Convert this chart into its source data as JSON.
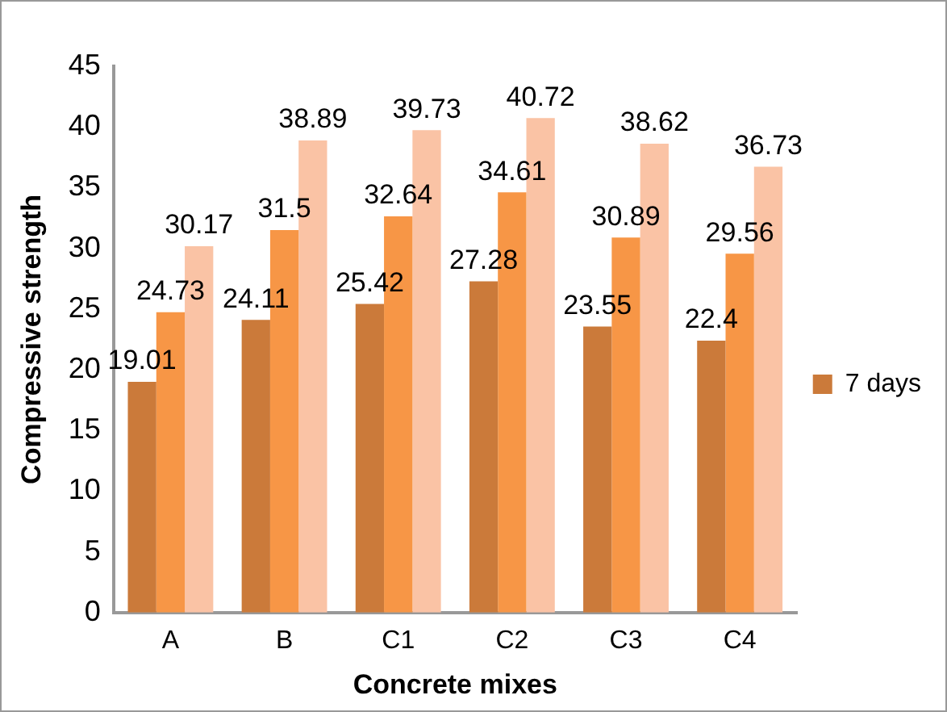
{
  "chart_data": {
    "type": "bar",
    "xlabel": "Concrete mixes",
    "ylabel": "Compressive strength",
    "categories": [
      "A",
      "B",
      "C1",
      "C2",
      "C3",
      "C4"
    ],
    "series": [
      {
        "name": "7 days",
        "color": "#cb7a3a",
        "values": [
          19.01,
          24.11,
          25.42,
          27.28,
          23.55,
          22.4
        ]
      },
      {
        "color": "#f79646",
        "values": [
          24.73,
          31.5,
          32.64,
          34.61,
          30.89,
          29.56
        ]
      },
      {
        "color": "#fac3a5",
        "values": [
          30.17,
          38.89,
          39.73,
          40.72,
          38.62,
          36.73
        ]
      }
    ],
    "ylim": [
      0,
      45
    ],
    "yticks": [
      0,
      5,
      10,
      15,
      20,
      25,
      30,
      35,
      40,
      45
    ],
    "grid": false,
    "legend": "right",
    "data_labels": true
  }
}
